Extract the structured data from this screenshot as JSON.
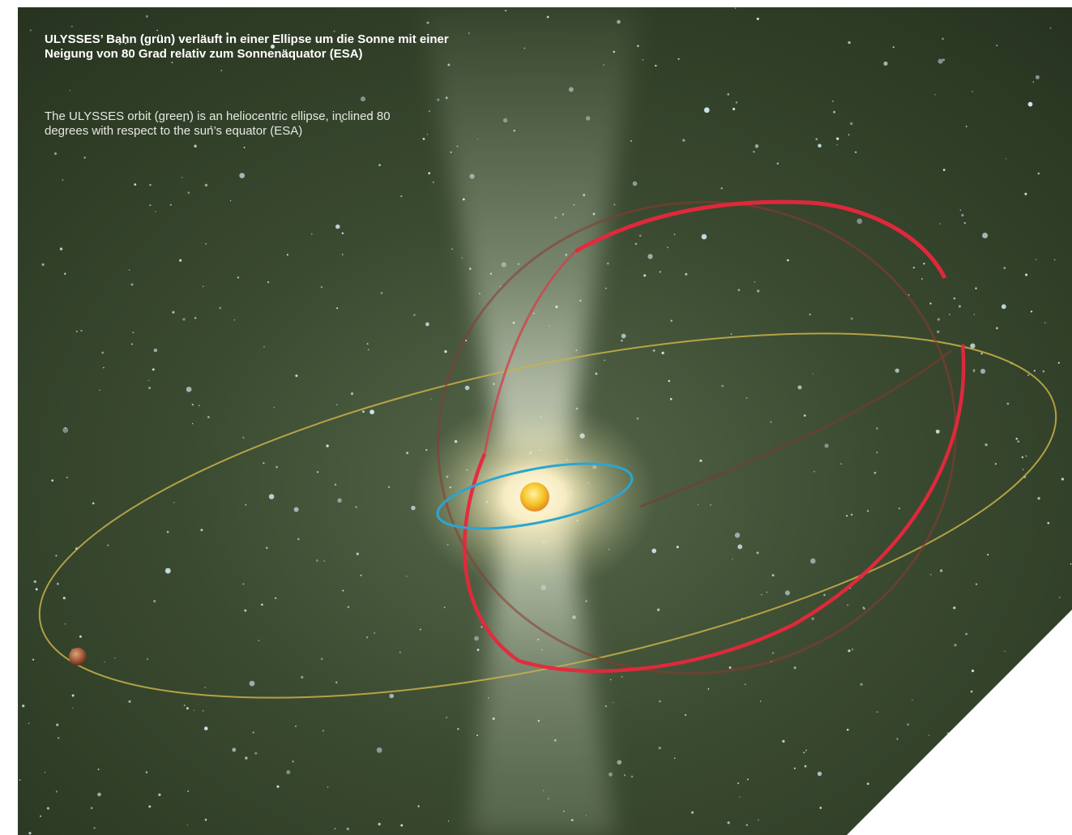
{
  "caption": {
    "german": "ULYSSES’ Bahn (grün) verläuft in einer Ellipse um die Sonne mit einer Neigung von 80 Grad relativ zum Sonnenäquator (ESA)",
    "english": "The ULYSSES orbit (green) is an heliocentric ellipse, inclined 80 degrees with respect to the sun’s equator (ESA)"
  },
  "colors": {
    "background_space": "#2f3d27",
    "page": "#ffffff",
    "ulysses_orbit": "#e8273c",
    "planet_orbit": "#c9b24a",
    "inner_orbit": "#2aa6d2",
    "sun": "#f7c82a",
    "planet": "#a05a38",
    "sun_jet": "#dfe9d4",
    "stars": "#cfe8f0"
  }
}
